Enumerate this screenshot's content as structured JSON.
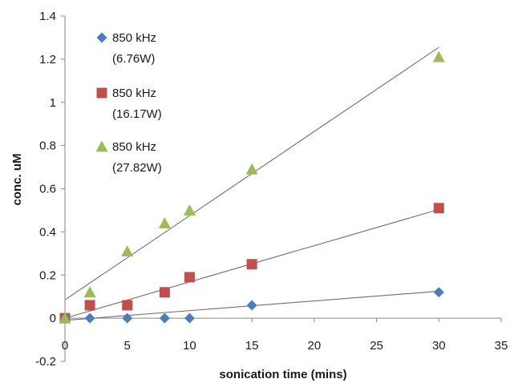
{
  "chart_data": {
    "type": "scatter",
    "title": "",
    "xlabel": "sonication time (mins)",
    "ylabel": "conc. uM",
    "xlim": [
      0,
      35
    ],
    "ylim": [
      -0.2,
      1.4
    ],
    "xticks": [
      "0",
      "5",
      "10",
      "15",
      "20",
      "25",
      "30",
      "35"
    ],
    "yticks": [
      "-0.2",
      "0",
      "0.2",
      "0.4",
      "0.6",
      "0.8",
      "1",
      "1.2",
      "1.4"
    ],
    "grid": false,
    "legend_position": "top-left",
    "series": [
      {
        "name": "850 kHz (6.76W)",
        "legend_lines": [
          "850 kHz",
          "(6.76W)"
        ],
        "marker": "diamond",
        "color": "#4a7ebb",
        "x": [
          0,
          2,
          5,
          8,
          10,
          15,
          30
        ],
        "y": [
          0.0,
          0.0,
          0.0,
          0.0,
          0.0,
          0.06,
          0.12
        ],
        "trendline": {
          "slope": 0.0045,
          "intercept": -0.01
        }
      },
      {
        "name": "850 kHz (16.17W)",
        "legend_lines": [
          "850 kHz",
          "(16.17W)"
        ],
        "marker": "square",
        "color": "#c0504d",
        "x": [
          0,
          2,
          5,
          8,
          10,
          15,
          30
        ],
        "y": [
          0.0,
          0.06,
          0.06,
          0.12,
          0.19,
          0.25,
          0.51
        ],
        "trendline": {
          "slope": 0.0168,
          "intercept": 0.0
        }
      },
      {
        "name": "850 kHz (27.82W)",
        "legend_lines": [
          "850 kHz",
          "(27.82W)"
        ],
        "marker": "triangle",
        "color": "#9bbb59",
        "x": [
          0,
          2,
          5,
          8,
          10,
          15,
          30
        ],
        "y": [
          0.0,
          0.12,
          0.31,
          0.44,
          0.5,
          0.69,
          1.21
        ],
        "trendline": {
          "slope": 0.039,
          "intercept": 0.085
        }
      }
    ]
  }
}
